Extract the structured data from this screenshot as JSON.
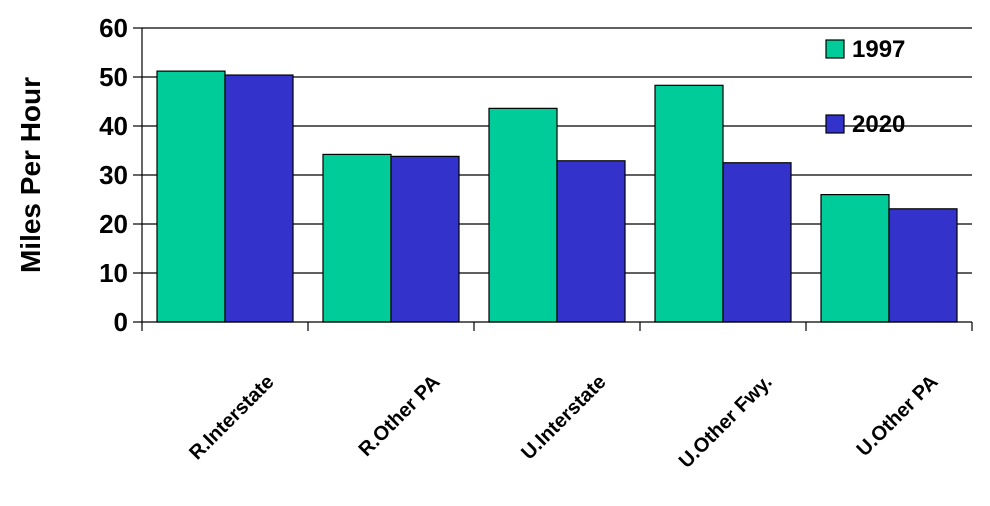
{
  "chart_data": {
    "type": "bar",
    "title": "",
    "xlabel": "",
    "ylabel": "Miles Per Hour",
    "ylim": [
      0,
      60
    ],
    "yticks": [
      0,
      10,
      20,
      30,
      40,
      50,
      60
    ],
    "grid": true,
    "legend_position": "top-right",
    "categories": [
      "R.Interstate",
      "R.Other PA",
      "U.Interstate",
      "U.Other Fwy.",
      "U.Other PA"
    ],
    "series": [
      {
        "name": "1997",
        "color": "#00cc99",
        "values": [
          51.2,
          34.2,
          43.6,
          48.3,
          26.0
        ]
      },
      {
        "name": "2020",
        "color": "#3333cc",
        "values": [
          50.4,
          33.8,
          32.9,
          32.5,
          23.1
        ]
      }
    ]
  }
}
